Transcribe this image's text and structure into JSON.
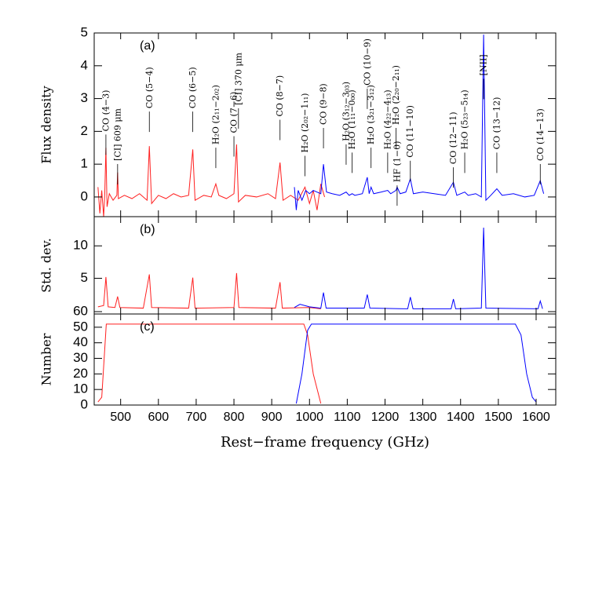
{
  "chart_data": [
    {
      "type": "line",
      "ylabel": "Flux density",
      "panel_label": "(a)",
      "xlim": [
        430,
        1652
      ],
      "xticks": [
        500,
        600,
        700,
        800,
        900,
        1000,
        1100,
        1200,
        1300,
        1400,
        1500,
        1600
      ],
      "xtick_labels": false,
      "ylim": [
        -0.6,
        5
      ],
      "yticks": [
        0,
        1,
        2,
        3,
        4,
        5
      ],
      "series": [
        {
          "color": "#ff2020",
          "x": [
            440,
            445,
            450,
            455,
            458,
            461,
            464,
            470,
            480,
            490,
            492,
            494,
            510,
            530,
            550,
            570,
            576,
            582,
            600,
            620,
            640,
            660,
            680,
            691,
            697,
            720,
            740,
            752,
            760,
            780,
            800,
            807,
            812,
            830,
            860,
            890,
            910,
            922,
            930,
            950,
            970,
            988,
            1000,
            1010,
            1020,
            1030,
            1040
          ],
          "values": [
            0.3,
            -0.5,
            0.2,
            -0.6,
            0.1,
            1.5,
            -0.3,
            0.1,
            -0.1,
            0.05,
            0.75,
            -0.05,
            0.05,
            -0.05,
            0.1,
            -0.1,
            1.55,
            -0.2,
            0.05,
            -0.05,
            0.1,
            0.0,
            0.05,
            1.45,
            -0.1,
            0.05,
            0.0,
            0.4,
            0.05,
            -0.05,
            0.1,
            1.6,
            -0.15,
            0.05,
            0.0,
            0.1,
            -0.05,
            1.05,
            -0.1,
            0.05,
            -0.1,
            0.3,
            -0.2,
            0.2,
            -0.4,
            0.4,
            0.0
          ]
        },
        {
          "color": "#0000ff",
          "x": [
            960,
            965,
            970,
            980,
            990,
            1000,
            1010,
            1020,
            1030,
            1037,
            1045,
            1060,
            1080,
            1097,
            1105,
            1113,
            1120,
            1140,
            1153,
            1158,
            1163,
            1170,
            1190,
            1207,
            1215,
            1229,
            1232,
            1240,
            1255,
            1267,
            1275,
            1300,
            1330,
            1360,
            1381,
            1390,
            1411,
            1420,
            1440,
            1455,
            1461,
            1467,
            1480,
            1496,
            1510,
            1540,
            1570,
            1595,
            1611,
            1620
          ],
          "values": [
            0.3,
            -0.4,
            0.2,
            -0.1,
            0.2,
            0.1,
            0.2,
            0.15,
            0.1,
            1.0,
            0.15,
            0.1,
            0.05,
            0.15,
            0.05,
            0.1,
            0.05,
            0.1,
            0.6,
            0.1,
            0.3,
            0.1,
            0.15,
            0.2,
            0.1,
            0.2,
            0.3,
            0.1,
            0.15,
            0.55,
            0.1,
            0.15,
            0.1,
            0.05,
            0.45,
            0.05,
            0.15,
            0.05,
            0.1,
            0.0,
            4.95,
            -0.1,
            0.05,
            0.25,
            0.05,
            0.1,
            0.0,
            0.05,
            0.5,
            0.1
          ]
        }
      ],
      "annotations": [
        {
          "text": "CO (4−3)",
          "x": 461,
          "y": 2.0
        },
        {
          "text": "[CI] 609 μm",
          "x": 492,
          "y": 1.1
        },
        {
          "text": "CO (5−4)",
          "x": 576,
          "y": 2.7
        },
        {
          "text": "CO (6−5)",
          "x": 691,
          "y": 2.7
        },
        {
          "text": "H₂O (2₁₁−2₀₂)",
          "x": 752,
          "y": 1.6
        },
        {
          "text": "CO (7−6)",
          "x": 800,
          "y": 1.95
        },
        {
          "text": "[CI] 370 μm",
          "x": 812,
          "y": 2.8
        },
        {
          "text": "CO (8−7)",
          "x": 922,
          "y": 2.45
        },
        {
          "text": "H₂O (2₀₂−1₁₁)",
          "x": 988,
          "y": 1.35
        },
        {
          "text": "CO (9−8)",
          "x": 1037,
          "y": 2.2
        },
        {
          "text": "H₂O (3₁₂−3₀₃)",
          "x": 1097,
          "y": 1.7
        },
        {
          "text": "H₂O (1₁₁−0₀₀)",
          "x": 1113,
          "y": 1.45
        },
        {
          "text": "CO (10−9)",
          "x": 1153,
          "y": 3.4
        },
        {
          "text": "H₂O (3₂₁−3₁₂)",
          "x": 1163,
          "y": 1.6
        },
        {
          "text": "H₂O (4₂₂−4₁₃)",
          "x": 1207,
          "y": 1.45
        },
        {
          "text": "H₂O (2₂₀−2₁₁)",
          "x": 1229,
          "y": 2.2
        },
        {
          "text": "HF (1−0)",
          "x": 1232,
          "y": 0.45
        },
        {
          "text": "CO (11−10)",
          "x": 1267,
          "y": 1.2
        },
        {
          "text": "CO (12−11)",
          "x": 1381,
          "y": 1.0
        },
        {
          "text": "H₂O (5₂₃−5₁₄)",
          "x": 1411,
          "y": 1.45
        },
        {
          "text": "[NII]",
          "x": 1461,
          "y": 3.7
        },
        {
          "text": "CO (13−12)",
          "x": 1496,
          "y": 1.45
        },
        {
          "text": "CO (14−13)",
          "x": 1611,
          "y": 1.1
        }
      ]
    },
    {
      "type": "line",
      "ylabel": "Std. dev.",
      "panel_label": "(b)",
      "xlim": [
        430,
        1652
      ],
      "xticks": [
        500,
        600,
        700,
        800,
        900,
        1000,
        1100,
        1200,
        1300,
        1400,
        1500,
        1600
      ],
      "xtick_labels": false,
      "ylim": [
        -0.5,
        14.5
      ],
      "yticks": [
        5,
        10
      ],
      "series": [
        {
          "color": "#ff2020",
          "x": [
            440,
            455,
            461,
            467,
            485,
            492,
            498,
            560,
            576,
            582,
            680,
            691,
            697,
            800,
            807,
            813,
            910,
            922,
            928,
            1000,
            1030
          ],
          "values": [
            0.6,
            0.8,
            5.2,
            0.6,
            0.5,
            2.2,
            0.5,
            0.4,
            5.6,
            0.5,
            0.4,
            5.1,
            0.4,
            0.5,
            5.8,
            0.5,
            0.4,
            4.4,
            0.4,
            0.5,
            0.3
          ]
        },
        {
          "color": "#0000ff",
          "x": [
            960,
            975,
            1000,
            1030,
            1037,
            1044,
            1145,
            1153,
            1160,
            1260,
            1267,
            1274,
            1375,
            1381,
            1387,
            1455,
            1461,
            1467,
            1605,
            1611,
            1617
          ],
          "values": [
            0.5,
            1.0,
            0.6,
            0.4,
            2.8,
            0.4,
            0.4,
            2.5,
            0.4,
            0.3,
            2.1,
            0.3,
            0.3,
            1.8,
            0.3,
            0.4,
            12.8,
            0.4,
            0.3,
            1.5,
            0.3
          ]
        }
      ]
    },
    {
      "type": "line",
      "ylabel": "Number",
      "panel_label": "(c)",
      "xlabel": "Rest−frame frequency (GHz)",
      "xlim": [
        430,
        1652
      ],
      "xticks": [
        500,
        600,
        700,
        800,
        900,
        1000,
        1100,
        1200,
        1300,
        1400,
        1500,
        1600
      ],
      "xtick_labels": true,
      "ylim": [
        0,
        58.5
      ],
      "yticks": [
        0,
        10,
        20,
        30,
        40,
        50,
        60
      ],
      "series": [
        {
          "color": "#ff2020",
          "x": [
            440,
            450,
            462,
            985,
            995,
            1010,
            1030
          ],
          "values": [
            2,
            5,
            52,
            52,
            45,
            20,
            1
          ]
        },
        {
          "color": "#0000ff",
          "x": [
            965,
            980,
            995,
            1005,
            1545,
            1560,
            1575,
            1590,
            1600
          ],
          "values": [
            1,
            20,
            48,
            52,
            52,
            45,
            20,
            5,
            2
          ]
        }
      ]
    }
  ]
}
